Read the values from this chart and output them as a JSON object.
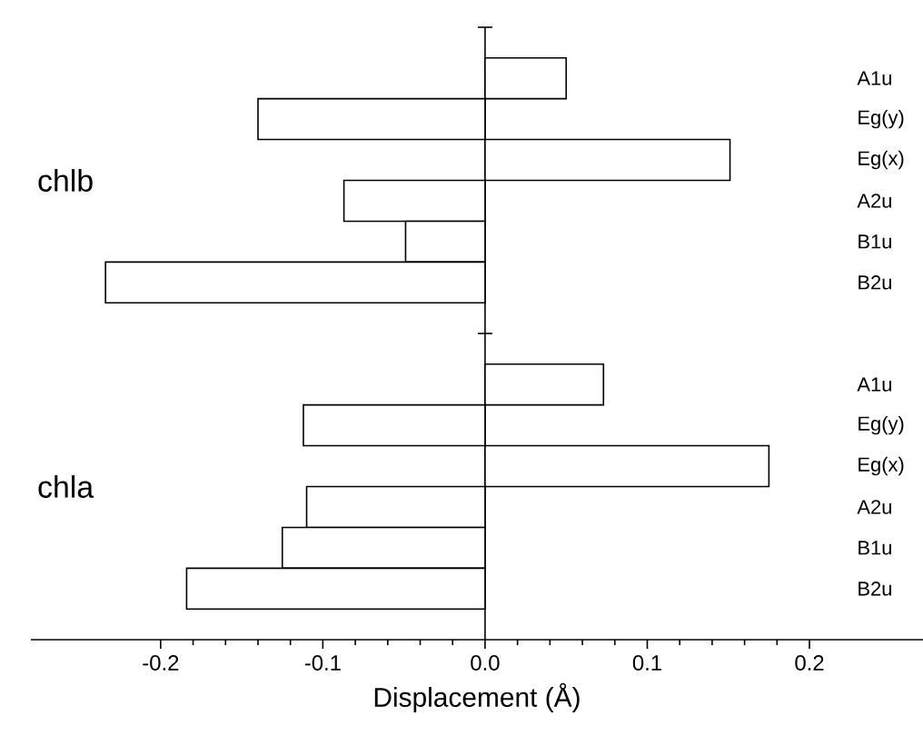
{
  "chart_data": {
    "type": "bar",
    "orientation": "horizontal",
    "xlabel": "Displacement (Å)",
    "categories": [
      "chlb",
      "chla"
    ],
    "series": [
      {
        "name": "A1u",
        "color": "#000000",
        "values": [
          0.05,
          0.073
        ]
      },
      {
        "name": "Eg(y)",
        "color": "#000000",
        "values": [
          -0.14,
          -0.112
        ]
      },
      {
        "name": "Eg(x)",
        "color": "#000000",
        "values": [
          0.151,
          0.175
        ]
      },
      {
        "name": "A2u",
        "color": "#000000",
        "values": [
          -0.087,
          -0.11
        ]
      },
      {
        "name": "B1u",
        "color": "#000000",
        "values": [
          -0.049,
          -0.125
        ]
      },
      {
        "name": "B2u",
        "color": "#000000",
        "values": [
          -0.234,
          -0.184
        ]
      }
    ],
    "xlim": [
      -0.28,
      0.27
    ],
    "xticks": [
      -0.2,
      -0.1,
      {
        "value": 0,
        "label": "0.0"
      },
      0.1,
      0.2
    ]
  }
}
